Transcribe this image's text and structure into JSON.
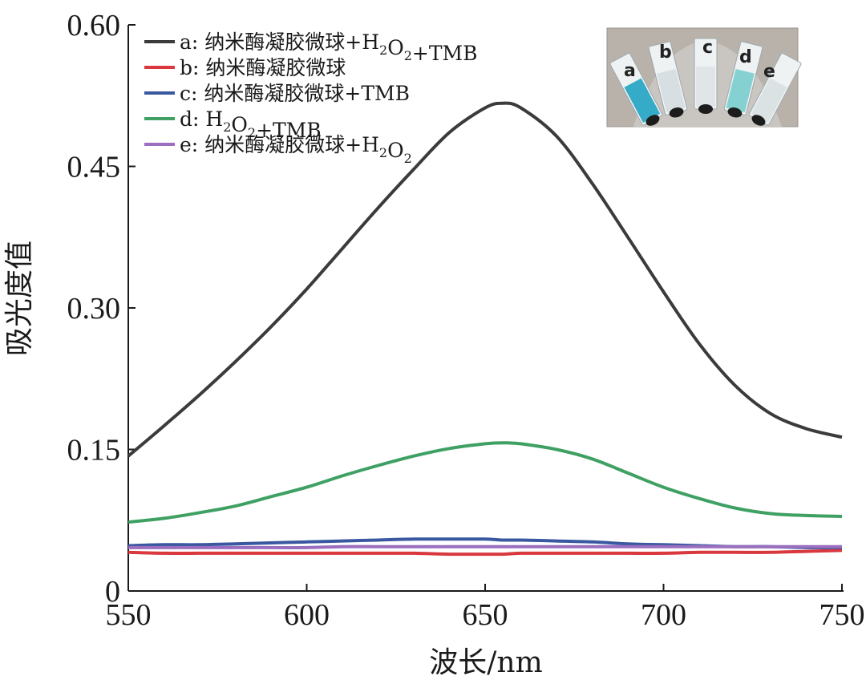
{
  "chart_data": {
    "type": "line",
    "xlabel": "波长/nm",
    "ylabel": "吸光度值",
    "xlim": [
      550,
      750
    ],
    "ylim": [
      0,
      0.6
    ],
    "xticks": [
      550,
      600,
      650,
      700,
      750
    ],
    "xtick_labels": [
      "550",
      "600",
      "650",
      "700",
      "750"
    ],
    "yticks": [
      0,
      0.15,
      0.3,
      0.45,
      0.6
    ],
    "ytick_labels": [
      "0",
      "0.15",
      "0.30",
      "0.45",
      "0.60"
    ],
    "legend_position": "top-left",
    "x": [
      550,
      560,
      570,
      580,
      590,
      600,
      610,
      620,
      630,
      640,
      650,
      655,
      660,
      670,
      680,
      690,
      700,
      710,
      720,
      730,
      740,
      750
    ],
    "series": [
      {
        "key": "a",
        "label_prefix": "a: 纳米酶凝胶微球+H",
        "label_parts": [
          "a: 纳米酶凝胶微球+H",
          "2",
          "O",
          "2",
          "+TMB"
        ],
        "color": "#3d3a3e",
        "values": [
          0.143,
          0.175,
          0.208,
          0.243,
          0.28,
          0.32,
          0.363,
          0.406,
          0.447,
          0.486,
          0.512,
          0.517,
          0.512,
          0.482,
          0.432,
          0.375,
          0.317,
          0.262,
          0.218,
          0.188,
          0.172,
          0.163
        ]
      },
      {
        "key": "b",
        "label_parts": [
          "b: 纳米酶凝胶微球"
        ],
        "color": "#d8383e",
        "values": [
          0.041,
          0.04,
          0.04,
          0.04,
          0.04,
          0.04,
          0.04,
          0.04,
          0.04,
          0.039,
          0.039,
          0.039,
          0.04,
          0.04,
          0.04,
          0.04,
          0.04,
          0.041,
          0.041,
          0.041,
          0.042,
          0.043
        ]
      },
      {
        "key": "c",
        "label_parts": [
          "c: 纳米酶凝胶微球+TMB"
        ],
        "color": "#3a58a0",
        "values": [
          0.048,
          0.049,
          0.049,
          0.05,
          0.051,
          0.052,
          0.053,
          0.054,
          0.055,
          0.055,
          0.055,
          0.054,
          0.054,
          0.053,
          0.052,
          0.05,
          0.049,
          0.048,
          0.047,
          0.047,
          0.046,
          0.046
        ]
      },
      {
        "key": "d",
        "label_parts": [
          "d: H",
          "2",
          "O",
          "2",
          "+TMB"
        ],
        "color": "#3fa063",
        "values": [
          0.073,
          0.077,
          0.083,
          0.09,
          0.1,
          0.11,
          0.122,
          0.133,
          0.143,
          0.151,
          0.156,
          0.157,
          0.156,
          0.15,
          0.14,
          0.125,
          0.11,
          0.098,
          0.088,
          0.082,
          0.08,
          0.079
        ]
      },
      {
        "key": "e",
        "label_parts": [
          "e: 纳米酶凝胶微球+H",
          "2",
          "O",
          "2"
        ],
        "color": "#9b6fc0",
        "values": [
          0.046,
          0.046,
          0.046,
          0.046,
          0.046,
          0.046,
          0.047,
          0.047,
          0.047,
          0.047,
          0.047,
          0.047,
          0.047,
          0.047,
          0.047,
          0.047,
          0.047,
          0.047,
          0.047,
          0.047,
          0.047,
          0.047
        ]
      }
    ]
  },
  "inset": {
    "tube_labels": [
      "a",
      "b",
      "c",
      "d",
      "e"
    ],
    "tube_colors": [
      "#2aa6c4",
      "#d6dde0",
      "#dfe4e6",
      "#7ecfd0",
      "#d9e0e2"
    ]
  }
}
